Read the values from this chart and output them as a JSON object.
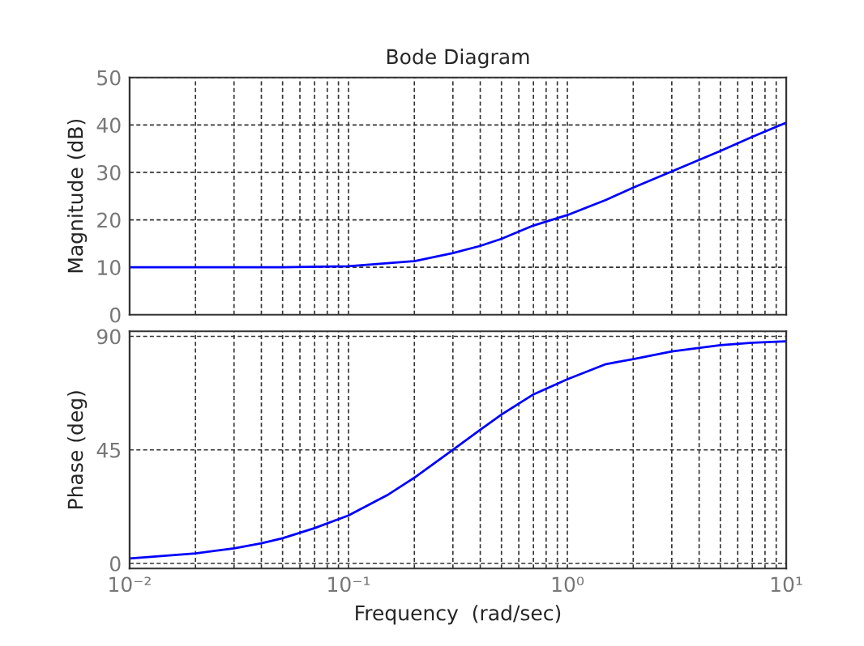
{
  "chart_data": [
    {
      "type": "line",
      "title": "Bode Diagram",
      "ylabel": "Magnitude (dB)",
      "log": "x",
      "grid": true,
      "tick_labels": "y",
      "line_style": "solid",
      "x": [
        0.01,
        0.02,
        0.05,
        0.1,
        0.2,
        0.3,
        0.4,
        0.5,
        0.7,
        1,
        1.5,
        2,
        3,
        5,
        7,
        10
      ],
      "series": [
        {
          "color": "#0000ff",
          "values": [
            10,
            10,
            10,
            10.2,
            11.3,
            13,
            14.5,
            16,
            18.8,
            21,
            24.2,
            26.8,
            30.2,
            34.5,
            37.5,
            40.5
          ]
        }
      ],
      "xlim": [
        0.01,
        10
      ],
      "xticks": [
        {
          "value": 0.01,
          "label": null
        },
        {
          "value": 0.1,
          "label": null
        },
        {
          "value": 1,
          "label": null
        },
        {
          "value": 10,
          "label": null
        }
      ],
      "ylim": [
        0,
        50
      ],
      "yticks": [
        0,
        10,
        20,
        30,
        40,
        50
      ]
    },
    {
      "type": "line",
      "xlabel": "Frequency  (rad/sec)",
      "ylabel": "Phase (deg)",
      "log": "x",
      "grid": true,
      "line_style": "solid",
      "x": [
        0.01,
        0.02,
        0.03,
        0.04,
        0.05,
        0.07,
        0.1,
        0.15,
        0.2,
        0.3,
        0.4,
        0.5,
        0.7,
        1,
        1.5,
        2,
        3,
        5,
        7,
        10
      ],
      "series": [
        {
          "color": "#0000ff",
          "values": [
            2,
            4,
            6,
            8,
            10,
            14,
            19,
            27,
            34,
            45,
            53,
            59,
            67,
            73,
            79,
            81,
            84,
            86.5,
            87.5,
            88
          ]
        }
      ],
      "xlim": [
        0.01,
        10
      ],
      "xticks": [
        {
          "value": 0.01,
          "label": "10⁻²"
        },
        {
          "value": 0.1,
          "label": "10⁻¹"
        },
        {
          "value": 1,
          "label": "10⁰"
        },
        {
          "value": 10,
          "label": "10¹"
        }
      ],
      "ylim": [
        -2,
        92
      ],
      "yticks": [
        0,
        45,
        90
      ]
    }
  ]
}
